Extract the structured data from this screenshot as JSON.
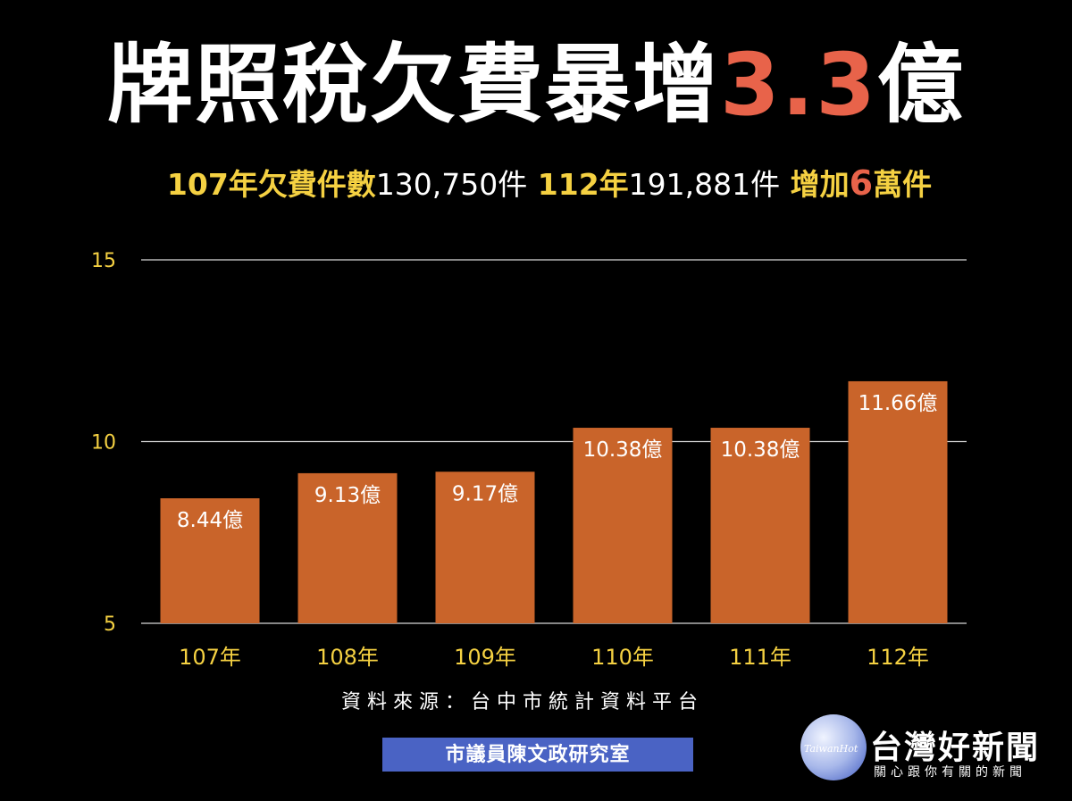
{
  "title": {
    "main": "牌照稅欠費暴增",
    "accent": "3.3",
    "tail": "億"
  },
  "subtitle": {
    "p1": "107年欠費件數",
    "p2": "130,750件",
    "p3": " 112年",
    "p4": "191,881件",
    "p5": " 增加",
    "p6": "6",
    "p7": "萬件"
  },
  "colors": {
    "background": "#000000",
    "bar": "#c9642a",
    "accent": "#e8634a",
    "yellow": "#f5d142",
    "banner": "#4a63c4"
  },
  "chart_data": {
    "type": "bar",
    "categories": [
      "107年",
      "108年",
      "109年",
      "110年",
      "111年",
      "112年"
    ],
    "values": [
      8.44,
      9.13,
      9.17,
      10.38,
      10.38,
      11.66
    ],
    "data_labels": [
      "8.44億",
      "9.13億",
      "9.17億",
      "10.38億",
      "10.38億",
      "11.66億"
    ],
    "ylim": [
      5,
      15
    ],
    "yticks": [
      5,
      10,
      15
    ],
    "grid": true,
    "xlabel": "",
    "ylabel": ""
  },
  "source": "資料來源：台中市統計資料平台",
  "banner": "市議員陳文政研究室",
  "logo": {
    "name": "台灣好新聞",
    "tagline": "關心跟你有關的新聞",
    "disc_text": "TaiwanHot"
  }
}
